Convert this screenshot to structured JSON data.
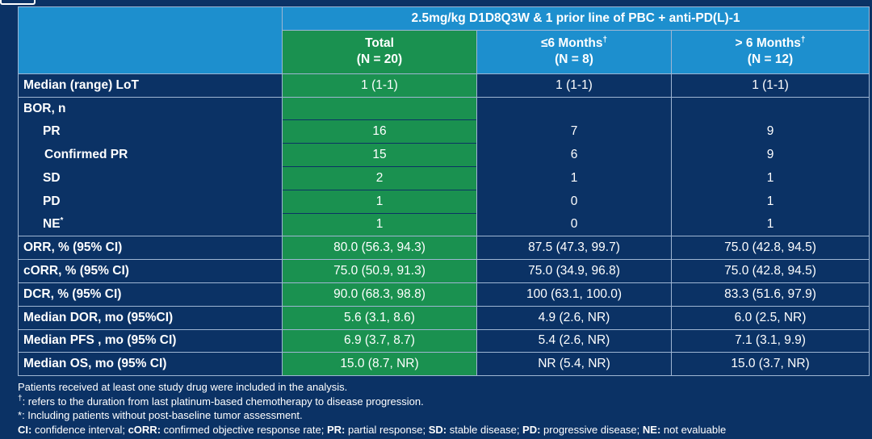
{
  "table": {
    "group_header": "2.5mg/kg D1D8Q3W & 1 prior line of PBC + anti-PD(L)-1",
    "columns": [
      {
        "title": "Total",
        "n": "(N = 20)",
        "sup": ""
      },
      {
        "title": "≤6 Months",
        "n": "(N = 8)",
        "sup": "†"
      },
      {
        "title": "> 6 Months",
        "n": "(N = 12)",
        "sup": "†"
      }
    ],
    "rows": [
      {
        "label": "Median (range) LoT",
        "sup": "",
        "indent": 0,
        "values": [
          "1 (1-1)",
          "1 (1-1)",
          "1 (1-1)"
        ]
      },
      {
        "label": "BOR, n",
        "sup": "",
        "indent": 0,
        "values": [
          "",
          "",
          ""
        ]
      },
      {
        "label": "PR",
        "sup": "",
        "indent": 1,
        "values": [
          "16",
          "7",
          "9"
        ]
      },
      {
        "label": "Confirmed PR",
        "sup": "",
        "indent": 2,
        "values": [
          "15",
          "6",
          "9"
        ]
      },
      {
        "label": "SD",
        "sup": "",
        "indent": 1,
        "values": [
          "2",
          "1",
          "1"
        ]
      },
      {
        "label": "PD",
        "sup": "",
        "indent": 1,
        "values": [
          "1",
          "0",
          "1"
        ]
      },
      {
        "label": "NE",
        "sup": "*",
        "indent": 1,
        "values": [
          "1",
          "0",
          "1"
        ]
      },
      {
        "label": "ORR, % (95% CI)",
        "sup": "",
        "indent": 0,
        "values": [
          "80.0 (56.3, 94.3)",
          "87.5 (47.3, 99.7)",
          "75.0 (42.8, 94.5)"
        ]
      },
      {
        "label": "cORR, % (95% CI)",
        "sup": "",
        "indent": 0,
        "values": [
          "75.0 (50.9, 91.3)",
          "75.0 (34.9, 96.8)",
          "75.0 (42.8, 94.5)"
        ]
      },
      {
        "label": "DCR, % (95% CI)",
        "sup": "",
        "indent": 0,
        "values": [
          "90.0 (68.3, 98.8)",
          "100 (63.1, 100.0)",
          "83.3 (51.6, 97.9)"
        ]
      },
      {
        "label": "Median DOR, mo (95%CI)",
        "sup": "",
        "indent": 0,
        "values": [
          "5.6 (3.1, 8.6)",
          "4.9 (2.6, NR)",
          "6.0 (2.5, NR)"
        ]
      },
      {
        "label": "Median PFS , mo (95% CI)",
        "sup": "",
        "indent": 0,
        "values": [
          "6.9 (3.7, 8.7)",
          "5.4 (2.6, NR)",
          "7.1 (3.1, 9.9)"
        ]
      },
      {
        "label": "Median OS, mo (95% CI)",
        "sup": "",
        "indent": 0,
        "values": [
          "15.0 (8.7, NR)",
          "NR (5.4, NR)",
          "15.0 (3.7, NR)"
        ]
      }
    ]
  },
  "footnotes": {
    "line1": "Patients received at least one study drug were included in the analysis.",
    "line2_mark": "†",
    "line2": ": refers to the duration from last platinum-based chemotherapy to disease progression.",
    "line3_mark": "*",
    "line3": ": Including patients without post-baseline tumor assessment.",
    "abbrev": [
      {
        "term": "CI:",
        "def": " confidence interval; "
      },
      {
        "term": "cORR:",
        "def": " confirmed objective response rate; "
      },
      {
        "term": "PR:",
        "def": " partial response; "
      },
      {
        "term": "SD:",
        "def": " stable disease; "
      },
      {
        "term": "PD:",
        "def": " progressive disease; "
      },
      {
        "term": "NE:",
        "def": " not evaluable"
      }
    ]
  },
  "colors": {
    "background": "#0b3265",
    "header_blue": "#1d8fce",
    "total_green": "#1a9150",
    "grid": "#9fb6d3"
  }
}
